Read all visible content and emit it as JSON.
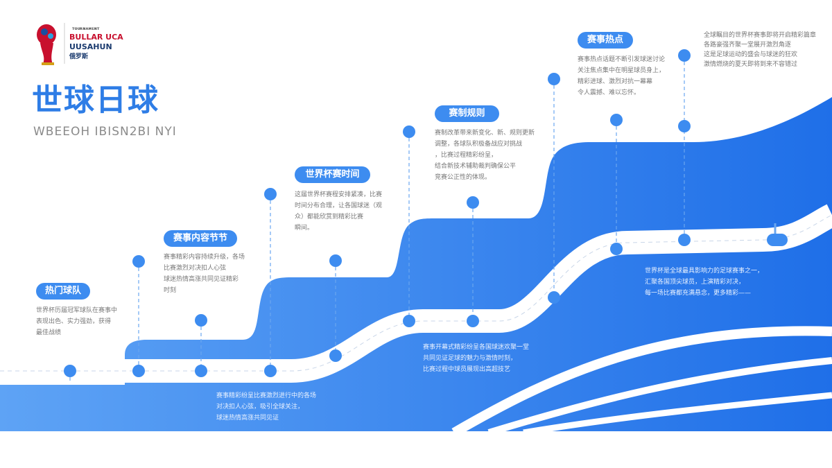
{
  "header": {
    "logo_small": "ᴛᴏᴜʀɴᴀᴍᴇɴᴛ",
    "logo_line1": "BULLAR UCA",
    "logo_line2": "UUSAHUN",
    "logo_line3": "俄罗斯",
    "title": "世球日球",
    "subtitle": "WBEEOH IBISN2BI NYI"
  },
  "colors": {
    "primary": "#2e7de6",
    "accent": "#3d8cf0",
    "logo_red": "#c8102e"
  },
  "milestones": [
    {
      "label": "热门球队",
      "text": [
        "世界杯历届冠军球队在赛事中",
        "表现出色、实力强劲，获得",
        "最佳战绩"
      ]
    },
    {
      "label": "赛事内容节节",
      "text": [
        "赛事精彩内容持续升级，各场",
        "比赛激烈对决扣人心弦",
        "球迷热情高涨共同见证精彩",
        "时刻"
      ]
    },
    {
      "label": "世界杯赛时间",
      "text": [
        "这届世界杯赛程安排紧凑，比赛",
        "时间分布合理，让各国球迷（观",
        "众）都能欣赏到精彩比赛",
        "瞬间。"
      ]
    },
    {
      "label": "赛制规则",
      "text": [
        "赛制改革带来新变化、新、规则更新",
        "调整，各球队积极备战应对挑战",
        "，比赛过程精彩纷呈，",
        "结合新技术辅助裁判确保公平",
        "竞赛公正性的体现。"
      ]
    },
    {
      "label": "赛事热点",
      "text": [
        "赛事热点话题不断引发球迷讨论",
        "关注焦点集中在明星球员身上，",
        "精彩进球、激烈对抗一幕幕",
        "令人震撼、难以忘怀。"
      ]
    }
  ],
  "notes": {
    "top_right": [
      "全球瞩目的世界杯赛事即将开启精彩篇章",
      "各路豪强齐聚一堂展开激烈角逐",
      "这是足球运动的盛会与球迷的狂欢",
      "激情燃烧的夏天即将到来不容错过"
    ],
    "mid_right": [
      "世界杯是全球最具影响力的足球赛事之一，",
      "汇聚各国顶尖球员，上演精彩对决，",
      "每一场比赛都充满悬念，更多精彩——"
    ],
    "mid": [
      "赛事开幕式精彩纷呈各国球迷欢聚一堂",
      "共同见证足球的魅力与激情时刻，",
      "比赛过程中球员展现出高超技艺"
    ],
    "bottom": [
      "赛事精彩纷呈比赛激烈进行中的各场",
      "对决扣人心弦，吸引全球关注，",
      "球迷热情高涨共同见证"
    ]
  }
}
